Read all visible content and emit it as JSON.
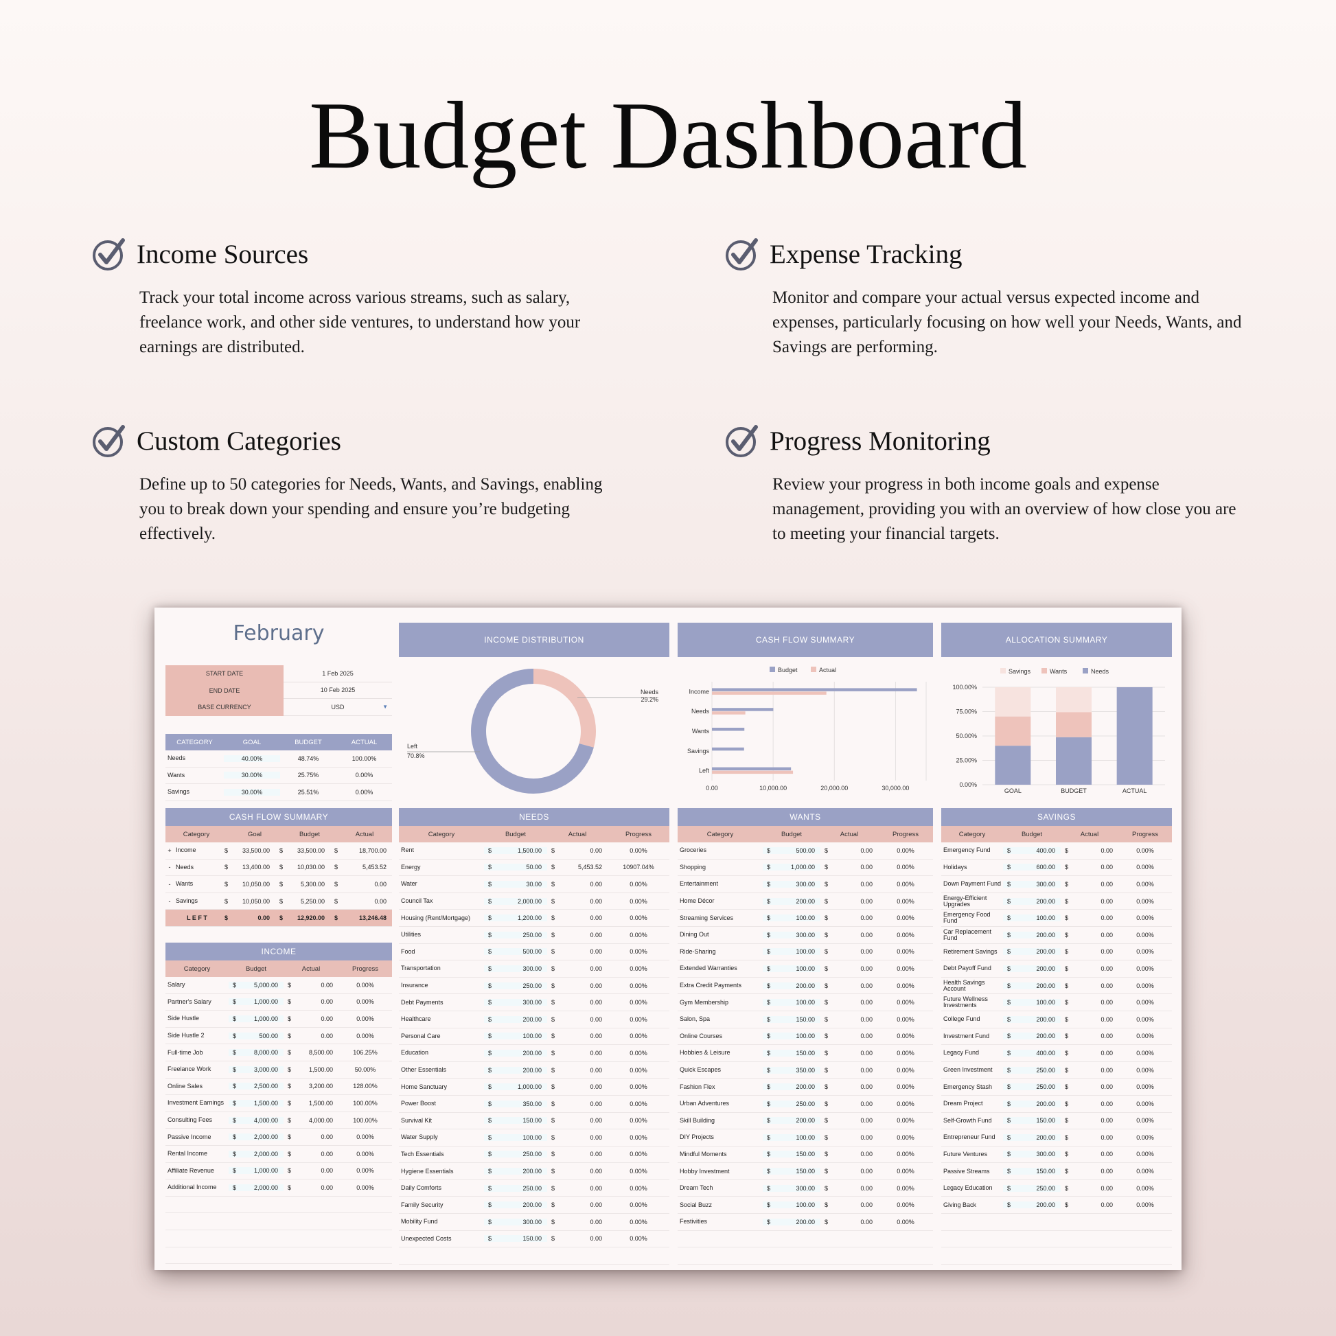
{
  "page": {
    "title": "Budget Dashboard",
    "features": [
      {
        "title": "Income Sources",
        "desc": "Track your total income across various streams, such as salary, freelance work, and other side ventures, to understand how your earnings are distributed."
      },
      {
        "title": "Expense Tracking",
        "desc": "Monitor and compare your actual versus expected income and expenses, particularly focusing on how well your Needs, Wants, and Savings are performing."
      },
      {
        "title": "Custom Categories",
        "desc": "Define up to 50 categories for Needs, Wants, and Savings, enabling you to break down your spending and ensure you’re budgeting effectively."
      },
      {
        "title": "Progress Monitoring",
        "desc": "Review your progress in both income goals and expense management, providing you with an overview of how close you are to meeting your financial targets."
      }
    ]
  },
  "colors": {
    "accent": "#9aa1c5",
    "pink": "#e9bcb4",
    "light_pink": "#f3e1dc"
  },
  "sheet": {
    "month": "February",
    "info": [
      {
        "k": "START DATE",
        "v": "1 Feb 2025"
      },
      {
        "k": "END DATE",
        "v": "10 Feb 2025"
      },
      {
        "k": "BASE CURRENCY",
        "v": "USD"
      }
    ],
    "alloc_headers": [
      "CATEGORY",
      "GOAL",
      "BUDGET",
      "ACTUAL"
    ],
    "alloc_rows": [
      [
        "Needs",
        "40.00%",
        "48.74%",
        "100.00%"
      ],
      [
        "Wants",
        "30.00%",
        "25.75%",
        "0.00%"
      ],
      [
        "Savings",
        "30.00%",
        "25.51%",
        "0.00%"
      ]
    ],
    "cashflow": {
      "title": "CASH FLOW SUMMARY",
      "headers": [
        "Category",
        "Goal",
        "Budget",
        "Actual"
      ],
      "rows": [
        [
          "+",
          "Income",
          "33,500.00",
          "33,500.00",
          "18,700.00"
        ],
        [
          "-",
          "Needs",
          "13,400.00",
          "10,030.00",
          "5,453.52"
        ],
        [
          "-",
          "Wants",
          "10,050.00",
          "5,300.00",
          "0.00"
        ],
        [
          "-",
          "Savings",
          "10,050.00",
          "5,250.00",
          "0.00"
        ]
      ],
      "left": {
        "label": "L E F T",
        "goal": "0.00",
        "budget": "12,920.00",
        "actual": "13,246.48"
      }
    },
    "currency_symbol": "$",
    "income": {
      "title": "INCOME",
      "headers": [
        "Category",
        "Budget",
        "Actual",
        "Progress"
      ],
      "rows": [
        [
          "Salary",
          "5,000.00",
          "0.00",
          "0.00%"
        ],
        [
          "Partner's Salary",
          "1,000.00",
          "0.00",
          "0.00%"
        ],
        [
          "Side Hustle",
          "1,000.00",
          "0.00",
          "0.00%"
        ],
        [
          "Side Hustle 2",
          "500.00",
          "0.00",
          "0.00%"
        ],
        [
          "Full-time Job",
          "8,000.00",
          "8,500.00",
          "106.25%"
        ],
        [
          "Freelance Work",
          "3,000.00",
          "1,500.00",
          "50.00%"
        ],
        [
          "Online Sales",
          "2,500.00",
          "3,200.00",
          "128.00%"
        ],
        [
          "Investment Earnings",
          "1,500.00",
          "1,500.00",
          "100.00%"
        ],
        [
          "Consulting Fees",
          "4,000.00",
          "4,000.00",
          "100.00%"
        ],
        [
          "Passive Income",
          "2,000.00",
          "0.00",
          "0.00%"
        ],
        [
          "Rental Income",
          "2,000.00",
          "0.00",
          "0.00%"
        ],
        [
          "Affiliate Revenue",
          "1,000.00",
          "0.00",
          "0.00%"
        ],
        [
          "Additional Income",
          "2,000.00",
          "0.00",
          "0.00%"
        ]
      ]
    },
    "charts": {
      "income_distribution": {
        "title": "INCOME DISTRIBUTION"
      },
      "cash_flow": {
        "title": "CASH FLOW SUMMARY"
      },
      "allocation": {
        "title": "ALLOCATION SUMMARY"
      }
    },
    "needs": {
      "title": "NEEDS",
      "headers": [
        "Category",
        "Budget",
        "Actual",
        "Progress"
      ],
      "rows": [
        [
          "Rent",
          "1,500.00",
          "0.00",
          "0.00%"
        ],
        [
          "Energy",
          "50.00",
          "5,453.52",
          "10907.04%"
        ],
        [
          "Water",
          "30.00",
          "0.00",
          "0.00%"
        ],
        [
          "Council Tax",
          "2,000.00",
          "0.00",
          "0.00%"
        ],
        [
          "Housing (Rent/Mortgage)",
          "1,200.00",
          "0.00",
          "0.00%"
        ],
        [
          "Utilities",
          "250.00",
          "0.00",
          "0.00%"
        ],
        [
          "Food",
          "500.00",
          "0.00",
          "0.00%"
        ],
        [
          "Transportation",
          "300.00",
          "0.00",
          "0.00%"
        ],
        [
          "Insurance",
          "250.00",
          "0.00",
          "0.00%"
        ],
        [
          "Debt Payments",
          "300.00",
          "0.00",
          "0.00%"
        ],
        [
          "Healthcare",
          "200.00",
          "0.00",
          "0.00%"
        ],
        [
          "Personal Care",
          "100.00",
          "0.00",
          "0.00%"
        ],
        [
          "Education",
          "200.00",
          "0.00",
          "0.00%"
        ],
        [
          "Other Essentials",
          "200.00",
          "0.00",
          "0.00%"
        ],
        [
          "Home Sanctuary",
          "1,000.00",
          "0.00",
          "0.00%"
        ],
        [
          "Power Boost",
          "350.00",
          "0.00",
          "0.00%"
        ],
        [
          "Survival Kit",
          "150.00",
          "0.00",
          "0.00%"
        ],
        [
          "Water Supply",
          "100.00",
          "0.00",
          "0.00%"
        ],
        [
          "Tech Essentials",
          "250.00",
          "0.00",
          "0.00%"
        ],
        [
          "Hygiene Essentials",
          "200.00",
          "0.00",
          "0.00%"
        ],
        [
          "Daily Comforts",
          "250.00",
          "0.00",
          "0.00%"
        ],
        [
          "Family Security",
          "200.00",
          "0.00",
          "0.00%"
        ],
        [
          "Mobility Fund",
          "300.00",
          "0.00",
          "0.00%"
        ],
        [
          "Unexpected Costs",
          "150.00",
          "0.00",
          "0.00%"
        ]
      ]
    },
    "wants": {
      "title": "WANTS",
      "headers": [
        "Category",
        "Budget",
        "Actual",
        "Progress"
      ],
      "rows": [
        [
          "Groceries",
          "500.00",
          "0.00",
          "0.00%"
        ],
        [
          "Shopping",
          "1,000.00",
          "0.00",
          "0.00%"
        ],
        [
          "Entertainment",
          "300.00",
          "0.00",
          "0.00%"
        ],
        [
          "Home Décor",
          "200.00",
          "0.00",
          "0.00%"
        ],
        [
          "Streaming Services",
          "100.00",
          "0.00",
          "0.00%"
        ],
        [
          "Dining Out",
          "300.00",
          "0.00",
          "0.00%"
        ],
        [
          "Ride-Sharing",
          "100.00",
          "0.00",
          "0.00%"
        ],
        [
          "Extended Warranties",
          "100.00",
          "0.00",
          "0.00%"
        ],
        [
          "Extra Credit Payments",
          "200.00",
          "0.00",
          "0.00%"
        ],
        [
          "Gym Membership",
          "100.00",
          "0.00",
          "0.00%"
        ],
        [
          "Salon, Spa",
          "150.00",
          "0.00",
          "0.00%"
        ],
        [
          "Online Courses",
          "100.00",
          "0.00",
          "0.00%"
        ],
        [
          "Hobbies & Leisure",
          "150.00",
          "0.00",
          "0.00%"
        ],
        [
          "Quick Escapes",
          "350.00",
          "0.00",
          "0.00%"
        ],
        [
          "Fashion Flex",
          "200.00",
          "0.00",
          "0.00%"
        ],
        [
          "Urban Adventures",
          "250.00",
          "0.00",
          "0.00%"
        ],
        [
          "Skill Building",
          "200.00",
          "0.00",
          "0.00%"
        ],
        [
          "DIY Projects",
          "100.00",
          "0.00",
          "0.00%"
        ],
        [
          "Mindful Moments",
          "150.00",
          "0.00",
          "0.00%"
        ],
        [
          "Hobby Investment",
          "150.00",
          "0.00",
          "0.00%"
        ],
        [
          "Dream Tech",
          "300.00",
          "0.00",
          "0.00%"
        ],
        [
          "Social Buzz",
          "100.00",
          "0.00",
          "0.00%"
        ],
        [
          "Festivities",
          "200.00",
          "0.00",
          "0.00%"
        ]
      ]
    },
    "savings": {
      "title": "SAVINGS",
      "headers": [
        "Category",
        "Budget",
        "Actual",
        "Progress"
      ],
      "rows": [
        [
          "Emergency Fund",
          "400.00",
          "0.00",
          "0.00%"
        ],
        [
          "Holidays",
          "600.00",
          "0.00",
          "0.00%"
        ],
        [
          "Down Payment Fund",
          "300.00",
          "0.00",
          "0.00%"
        ],
        [
          "Energy-Efficient Upgrades",
          "200.00",
          "0.00",
          "0.00%"
        ],
        [
          "Emergency Food Fund",
          "100.00",
          "0.00",
          "0.00%"
        ],
        [
          "Car Replacement Fund",
          "200.00",
          "0.00",
          "0.00%"
        ],
        [
          "Retirement Savings",
          "200.00",
          "0.00",
          "0.00%"
        ],
        [
          "Debt Payoff Fund",
          "200.00",
          "0.00",
          "0.00%"
        ],
        [
          "Health Savings Account",
          "200.00",
          "0.00",
          "0.00%"
        ],
        [
          "Future Wellness Investments",
          "100.00",
          "0.00",
          "0.00%"
        ],
        [
          "College Fund",
          "200.00",
          "0.00",
          "0.00%"
        ],
        [
          "Investment Fund",
          "200.00",
          "0.00",
          "0.00%"
        ],
        [
          "Legacy Fund",
          "400.00",
          "0.00",
          "0.00%"
        ],
        [
          "Green Investment",
          "250.00",
          "0.00",
          "0.00%"
        ],
        [
          "Emergency Stash",
          "250.00",
          "0.00",
          "0.00%"
        ],
        [
          "Dream Project",
          "200.00",
          "0.00",
          "0.00%"
        ],
        [
          "Self-Growth Fund",
          "150.00",
          "0.00",
          "0.00%"
        ],
        [
          "Entrepreneur Fund",
          "200.00",
          "0.00",
          "0.00%"
        ],
        [
          "Future Ventures",
          "300.00",
          "0.00",
          "0.00%"
        ],
        [
          "Passive Streams",
          "150.00",
          "0.00",
          "0.00%"
        ],
        [
          "Legacy Education",
          "250.00",
          "0.00",
          "0.00%"
        ],
        [
          "Giving Back",
          "200.00",
          "0.00",
          "0.00%"
        ]
      ]
    }
  },
  "chart_data": [
    {
      "type": "pie",
      "title": "INCOME DISTRIBUTION",
      "categories": [
        "Needs",
        "Left"
      ],
      "labels": [
        "Needs",
        "Left"
      ],
      "percent_labels": [
        "29.2%",
        "70.8%"
      ],
      "values": [
        29.2,
        70.8
      ],
      "colors": [
        "#eec3bb",
        "#9aa1c5"
      ]
    },
    {
      "type": "bar",
      "title": "CASH FLOW SUMMARY",
      "orientation": "horizontal",
      "categories": [
        "Income",
        "Needs",
        "Wants",
        "Savings",
        "Left"
      ],
      "series": [
        {
          "name": "Budget",
          "values": [
            33500,
            10030,
            5300,
            5250,
            12920
          ],
          "color": "#9aa1c5"
        },
        {
          "name": "Actual",
          "values": [
            18700,
            5453.52,
            0,
            0,
            13246.48
          ],
          "color": "#eec3bb"
        }
      ],
      "xticks": [
        "0.00",
        "10,000.00",
        "20,000.00",
        "30,000.00"
      ],
      "xlim": [
        0,
        35000
      ],
      "legend": "top"
    },
    {
      "type": "bar",
      "title": "ALLOCATION SUMMARY",
      "stacked": true,
      "categories": [
        "GOAL",
        "BUDGET",
        "ACTUAL"
      ],
      "series": [
        {
          "name": "Needs",
          "values": [
            40,
            48.74,
            100
          ],
          "color": "#9aa1c5"
        },
        {
          "name": "Wants",
          "values": [
            30,
            25.75,
            0
          ],
          "color": "#eec3bb"
        },
        {
          "name": "Savings",
          "values": [
            30,
            25.51,
            0
          ],
          "color": "#f7e3df"
        }
      ],
      "legend_order": [
        "Savings",
        "Wants",
        "Needs"
      ],
      "yticks": [
        "100.00%",
        "75.00%",
        "50.00%",
        "25.00%",
        "0.00%"
      ],
      "ylim": [
        0,
        100
      ],
      "legend": "top"
    }
  ]
}
